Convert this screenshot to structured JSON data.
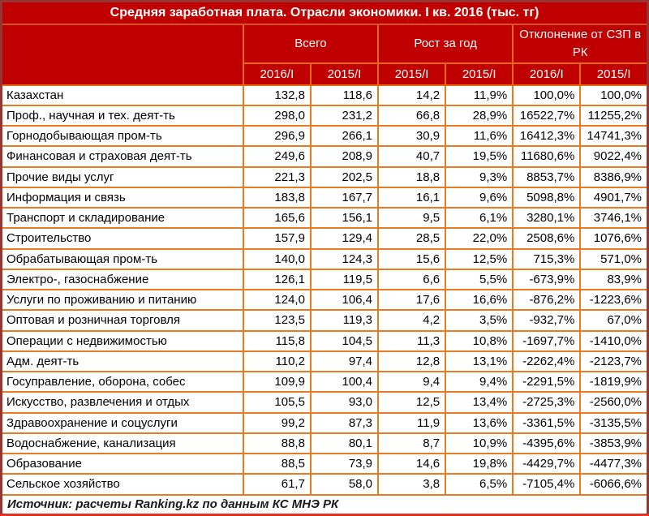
{
  "chart_data": {
    "type": "table",
    "title": "Средняя заработная плата. Отрасли экономики. I кв. 2016 (тыс. тг)",
    "column_groups": [
      {
        "label": "Всего",
        "span": 2
      },
      {
        "label": "Рост за год",
        "span": 2
      },
      {
        "label": "Отклонение от СЗП в РК",
        "span": 2
      }
    ],
    "sub_columns": [
      "2016/I",
      "2015/I",
      "2015/I",
      "2015/I",
      "2016/I",
      "2015/I"
    ],
    "rows": [
      {
        "label": "Казахстан",
        "values": [
          "132,8",
          "118,6",
          "14,2",
          "11,9%",
          "100,0%",
          "100,0%"
        ]
      },
      {
        "label": "Проф., научная и тех. деят-ть",
        "values": [
          "298,0",
          "231,2",
          "66,8",
          "28,9%",
          "16522,7%",
          "11255,2%"
        ]
      },
      {
        "label": "Горнодобывающая пром-ть",
        "values": [
          "296,9",
          "266,1",
          "30,9",
          "11,6%",
          "16412,3%",
          "14741,3%"
        ]
      },
      {
        "label": "Финансовая и страховая деят-ть",
        "values": [
          "249,6",
          "208,9",
          "40,7",
          "19,5%",
          "11680,6%",
          "9022,4%"
        ]
      },
      {
        "label": "Прочие виды услуг",
        "values": [
          "221,3",
          "202,5",
          "18,8",
          "9,3%",
          "8853,7%",
          "8386,9%"
        ]
      },
      {
        "label": "Информация и связь",
        "values": [
          "183,8",
          "167,7",
          "16,1",
          "9,6%",
          "5098,8%",
          "4901,7%"
        ]
      },
      {
        "label": "Транспорт и складирование",
        "values": [
          "165,6",
          "156,1",
          "9,5",
          "6,1%",
          "3280,1%",
          "3746,1%"
        ]
      },
      {
        "label": "Строительство",
        "values": [
          "157,9",
          "129,4",
          "28,5",
          "22,0%",
          "2508,6%",
          "1076,6%"
        ]
      },
      {
        "label": "Обрабатывающая пром-ть",
        "values": [
          "140,0",
          "124,3",
          "15,6",
          "12,5%",
          "715,3%",
          "571,0%"
        ]
      },
      {
        "label": "Электро-, газоснабжение",
        "values": [
          "126,1",
          "119,5",
          "6,6",
          "5,5%",
          "-673,9%",
          "83,9%"
        ]
      },
      {
        "label": "Услуги по проживанию и питанию",
        "values": [
          "124,0",
          "106,4",
          "17,6",
          "16,6%",
          "-876,2%",
          "-1223,6%"
        ]
      },
      {
        "label": "Оптовая и розничная торговля",
        "values": [
          "123,5",
          "119,3",
          "4,2",
          "3,5%",
          "-932,7%",
          "67,0%"
        ]
      },
      {
        "label": "Операции с недвижимостью",
        "values": [
          "115,8",
          "104,5",
          "11,3",
          "10,8%",
          "-1697,7%",
          "-1410,0%"
        ]
      },
      {
        "label": "Адм. деят-ть",
        "values": [
          "110,2",
          "97,4",
          "12,8",
          "13,1%",
          "-2262,4%",
          "-2123,7%"
        ]
      },
      {
        "label": "Госуправление, оборона, собес",
        "values": [
          "109,9",
          "100,4",
          "9,4",
          "9,4%",
          "-2291,5%",
          "-1819,9%"
        ]
      },
      {
        "label": "Искусство, развлечения и отдых",
        "values": [
          "105,5",
          "93,0",
          "12,5",
          "13,4%",
          "-2725,3%",
          "-2560,0%"
        ]
      },
      {
        "label": "Здравоохранение и соцуслуги",
        "values": [
          "99,2",
          "87,3",
          "11,9",
          "13,6%",
          "-3361,5%",
          "-3135,5%"
        ]
      },
      {
        "label": "Водоснабжение, канализация",
        "values": [
          "88,8",
          "80,1",
          "8,7",
          "10,9%",
          "-4395,6%",
          "-3853,9%"
        ]
      },
      {
        "label": "Образование",
        "values": [
          "88,5",
          "73,9",
          "14,6",
          "19,8%",
          "-4429,7%",
          "-4477,3%"
        ]
      },
      {
        "label": "Сельское хозяйство",
        "values": [
          "61,7",
          "58,0",
          "3,8",
          "6,5%",
          "-7105,4%",
          "-6066,6%"
        ]
      }
    ],
    "source": "Источник: расчеты Ranking.kz по данным КС МНЭ РК"
  },
  "colors": {
    "header_bg": "#c00000",
    "header_text": "#ffffff",
    "inner_border_orange": "#e26b0a",
    "data_border_orange": "#e87a22",
    "outer_border_maroon": "#963634",
    "bottom_border_red": "#e0301e",
    "body_text": "#000000"
  }
}
